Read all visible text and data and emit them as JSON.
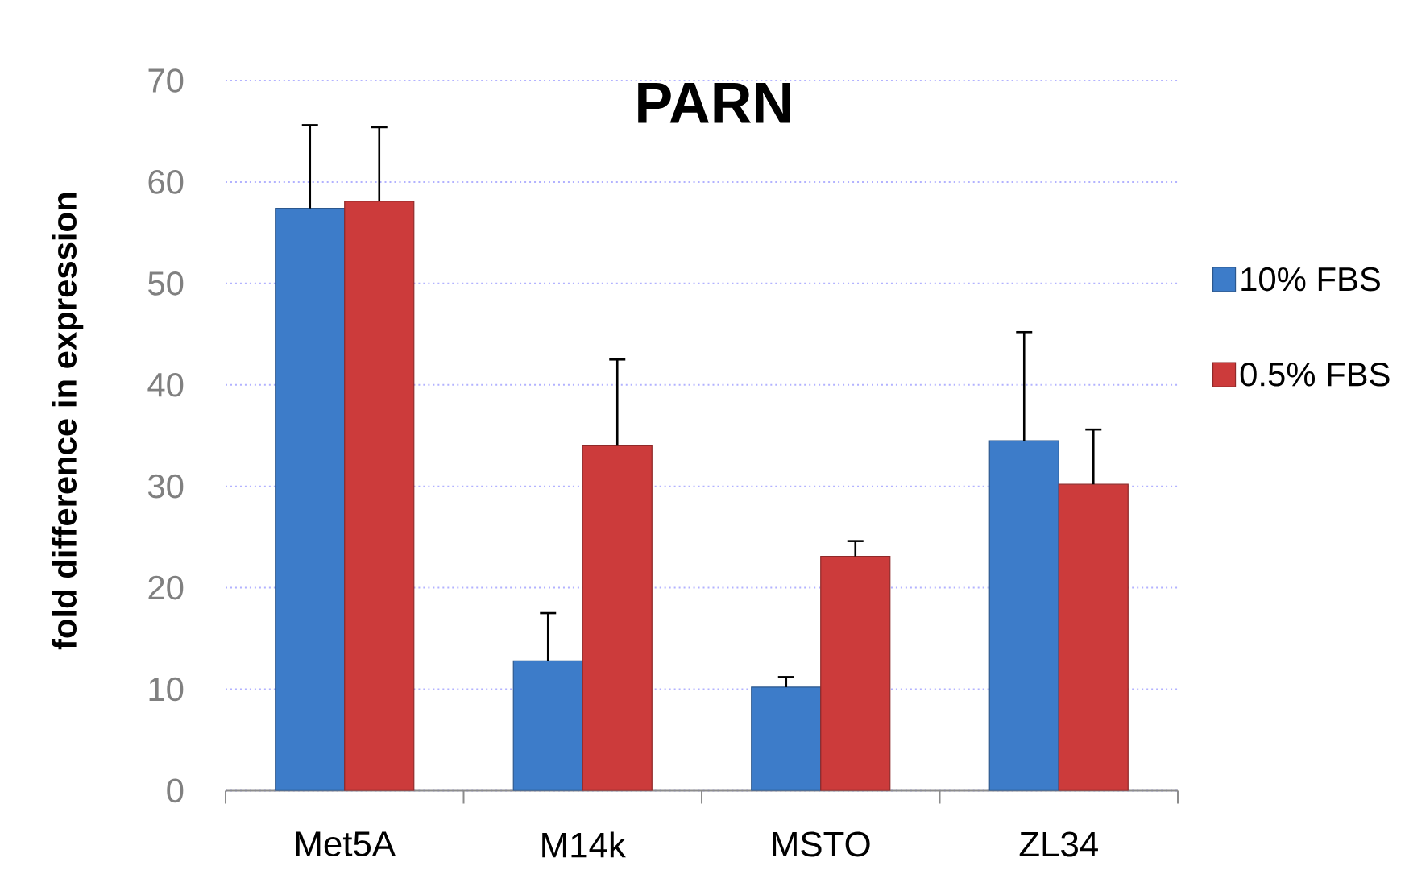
{
  "chart_data": {
    "type": "bar",
    "title": "PARN",
    "ylabel": "fold difference in expression",
    "categories": [
      "Met5A",
      "M14k",
      "MSTO",
      "ZL34"
    ],
    "series": [
      {
        "name": "10% FBS",
        "color": "#3d7cc9",
        "values": [
          57.4,
          12.8,
          10.2,
          34.5
        ],
        "errors": [
          [
            57.4,
            65.6
          ],
          [
            12.8,
            17.5
          ],
          [
            10.2,
            11.2
          ],
          [
            34.5,
            45.2
          ]
        ]
      },
      {
        "name": "0.5% FBS",
        "color": "#cc3b3b",
        "values": [
          58.1,
          34.0,
          23.1,
          30.2
        ],
        "errors": [
          [
            58.1,
            65.4
          ],
          [
            34.0,
            42.5
          ],
          [
            23.1,
            24.6
          ],
          [
            30.2,
            35.6
          ]
        ]
      }
    ],
    "ylim": [
      0,
      70
    ],
    "yticks": [
      0,
      10,
      20,
      30,
      40,
      50,
      60,
      70
    ],
    "grid": "y",
    "legend": "right"
  }
}
